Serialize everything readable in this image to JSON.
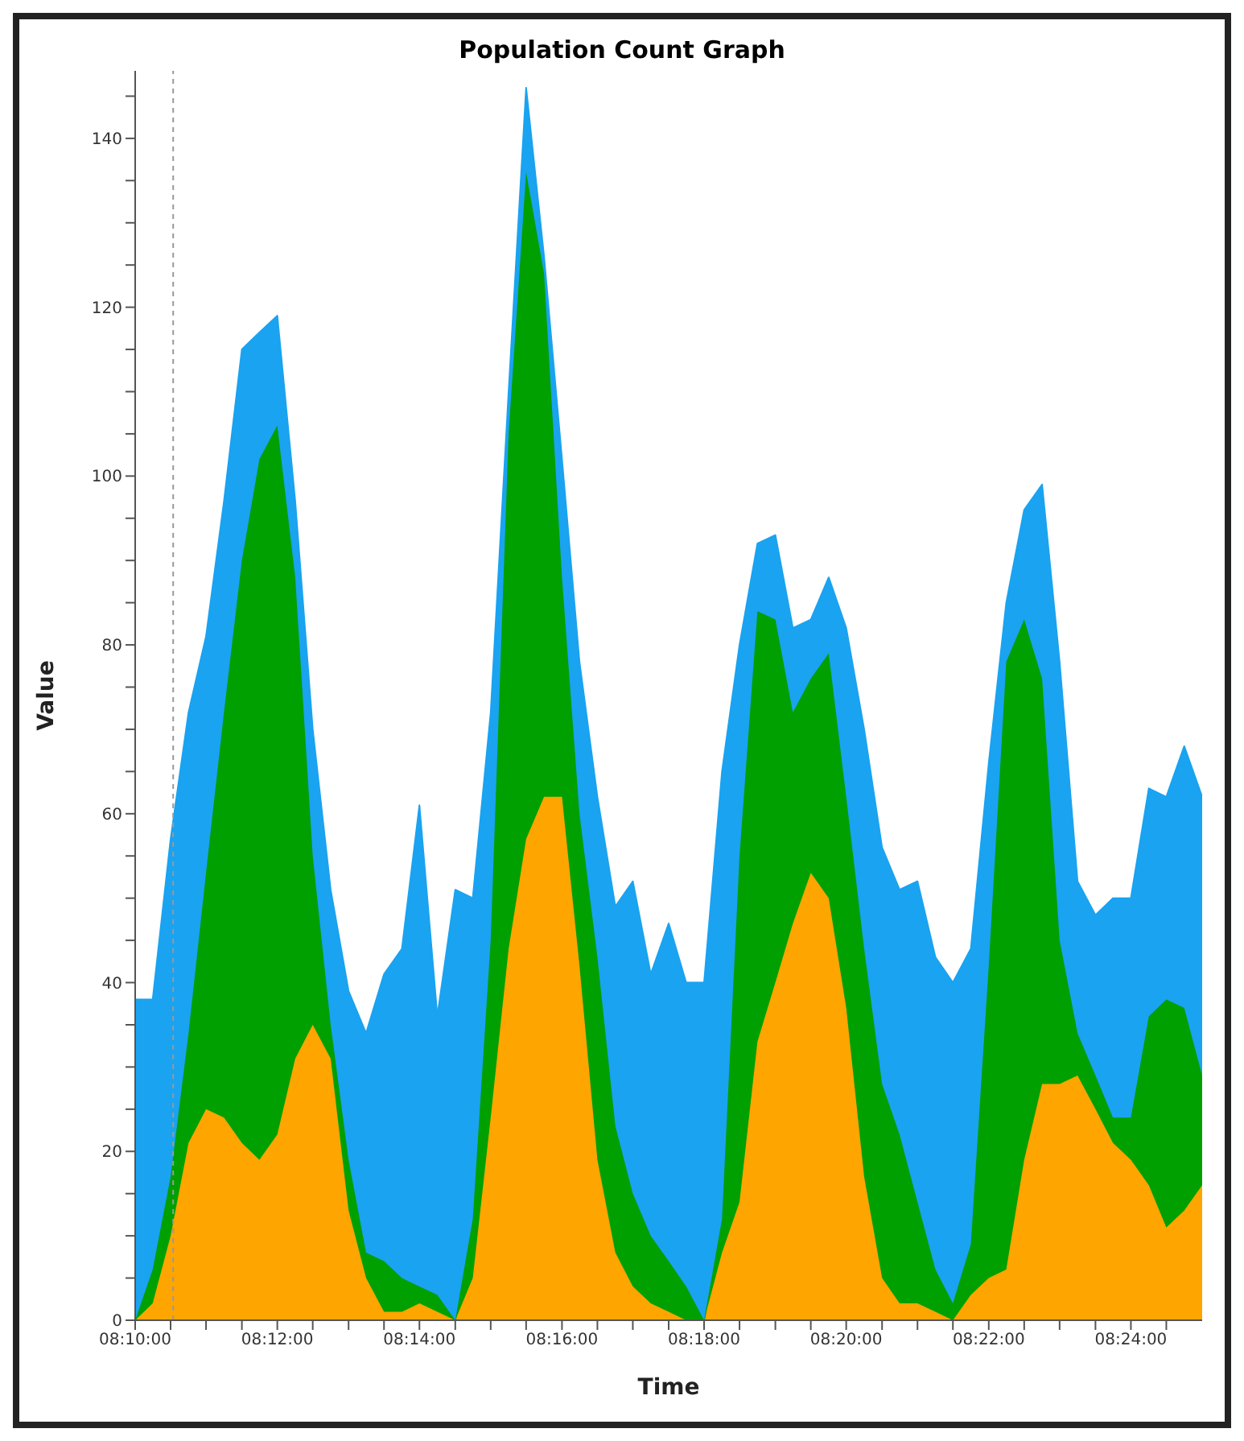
{
  "chart_data": {
    "type": "area",
    "title": "Population Count Graph",
    "xlabel": "Time",
    "ylabel": "Value",
    "stacked": true,
    "legend": false,
    "grid": false,
    "marker": "none",
    "x": [
      8.1667,
      8.1708,
      8.175,
      8.1792,
      8.1833,
      8.1875,
      8.1917,
      8.1958,
      8.2,
      8.2042,
      8.2083,
      8.2125,
      8.2167,
      8.2208,
      8.225,
      8.2292,
      8.2333,
      8.2375,
      8.2417,
      8.2458,
      8.25,
      8.2542,
      8.2583,
      8.2625,
      8.2667,
      8.2708,
      8.275,
      8.2792,
      8.2833,
      8.2875,
      8.2917,
      8.2958,
      8.3,
      8.3042,
      8.3083,
      8.3125,
      8.3167,
      8.3208,
      8.325,
      8.3292,
      8.3333,
      8.3375,
      8.3417,
      8.3458,
      8.35,
      8.3542,
      8.3583,
      8.3625,
      8.3667,
      8.3708,
      8.375,
      8.3792,
      8.3833,
      8.3875,
      8.3917,
      8.3958,
      8.4,
      8.4042,
      8.4083,
      8.4125,
      8.4167
    ],
    "series": [
      {
        "color": "#ffa500",
        "values": [
          0,
          2,
          10,
          21,
          25,
          24,
          21,
          19,
          22,
          31,
          35,
          31,
          13,
          5,
          1,
          1,
          2,
          1,
          0,
          5,
          24,
          44,
          57,
          62,
          62,
          42,
          19,
          8,
          4,
          2,
          1,
          0,
          0,
          8,
          14,
          33,
          40,
          47,
          53,
          50,
          37,
          17,
          5,
          2,
          2,
          1,
          0,
          3,
          5,
          6,
          19,
          28,
          28,
          29,
          25,
          21,
          19,
          16,
          11,
          13,
          16
        ]
      },
      {
        "color": "#00a000",
        "values": [
          0,
          4,
          7,
          13,
          28,
          48,
          69,
          83,
          84,
          57,
          20,
          4,
          6,
          3,
          6,
          4,
          2,
          2,
          0,
          7,
          21,
          61,
          79,
          62,
          26,
          18,
          24,
          15,
          11,
          8,
          6,
          4,
          0,
          4,
          41,
          51,
          43,
          25,
          23,
          29,
          25,
          27,
          23,
          20,
          12,
          5,
          2,
          6,
          37,
          72,
          64,
          48,
          17,
          5,
          4,
          3,
          5,
          20,
          27,
          24,
          13
        ]
      },
      {
        "color": "#1aa3f0",
        "values": [
          38,
          32,
          40,
          38,
          28,
          25,
          25,
          15,
          13,
          9,
          15,
          16,
          20,
          26,
          34,
          39,
          57,
          33,
          51,
          38,
          27,
          5,
          10,
          2,
          14,
          18,
          19,
          26,
          37,
          31,
          40,
          36,
          40,
          53,
          25,
          8,
          10,
          10,
          7,
          9,
          20,
          26,
          28,
          29,
          38,
          37,
          38,
          35,
          24,
          7,
          13,
          23,
          33,
          18,
          19,
          26,
          26,
          27,
          24,
          31,
          33
        ]
      }
    ],
    "xlim": [
      8.1667,
      8.4167
    ],
    "xticks": [
      {
        "value": 8.1667,
        "label": "08:10:00"
      },
      {
        "value": 8.175,
        "label": null
      },
      {
        "value": 8.1833,
        "label": null
      },
      {
        "value": 8.1917,
        "label": null
      },
      {
        "value": 8.2,
        "label": "08:12:00"
      },
      {
        "value": 8.2083,
        "label": null
      },
      {
        "value": 8.2167,
        "label": null
      },
      {
        "value": 8.225,
        "label": null
      },
      {
        "value": 8.2333,
        "label": "08:14:00"
      },
      {
        "value": 8.2417,
        "label": null
      },
      {
        "value": 8.25,
        "label": null
      },
      {
        "value": 8.2583,
        "label": null
      },
      {
        "value": 8.2667,
        "label": "08:16:00"
      },
      {
        "value": 8.275,
        "label": null
      },
      {
        "value": 8.2833,
        "label": null
      },
      {
        "value": 8.2917,
        "label": null
      },
      {
        "value": 8.3,
        "label": "08:18:00"
      },
      {
        "value": 8.3083,
        "label": null
      },
      {
        "value": 8.3167,
        "label": null
      },
      {
        "value": 8.325,
        "label": null
      },
      {
        "value": 8.3333,
        "label": "08:20:00"
      },
      {
        "value": 8.3417,
        "label": null
      },
      {
        "value": 8.35,
        "label": null
      },
      {
        "value": 8.3583,
        "label": null
      },
      {
        "value": 8.3667,
        "label": "08:22:00"
      },
      {
        "value": 8.375,
        "label": null
      },
      {
        "value": 8.3833,
        "label": null
      },
      {
        "value": 8.3917,
        "label": null
      },
      {
        "value": 8.4,
        "label": "08:24:00"
      },
      {
        "value": 8.4083,
        "label": null
      }
    ],
    "ylim": [
      0,
      148
    ],
    "yticks": [
      0,
      {
        "value": 5,
        "label": null
      },
      {
        "value": 10,
        "label": null
      },
      {
        "value": 15,
        "label": null
      },
      20,
      {
        "value": 25,
        "label": null
      },
      {
        "value": 30,
        "label": null
      },
      {
        "value": 35,
        "label": null
      },
      40,
      {
        "value": 45,
        "label": null
      },
      {
        "value": 50,
        "label": null
      },
      {
        "value": 55,
        "label": null
      },
      60,
      {
        "value": 65,
        "label": null
      },
      {
        "value": 70,
        "label": null
      },
      {
        "value": 75,
        "label": null
      },
      80,
      {
        "value": 85,
        "label": null
      },
      {
        "value": 90,
        "label": null
      },
      {
        "value": 95,
        "label": null
      },
      100,
      {
        "value": 105,
        "label": null
      },
      {
        "value": 110,
        "label": null
      },
      {
        "value": 115,
        "label": null
      },
      120,
      {
        "value": 125,
        "label": null
      },
      {
        "value": 130,
        "label": null
      },
      {
        "value": 135,
        "label": null
      },
      140,
      {
        "value": 145,
        "label": null
      }
    ],
    "ref_lines": [
      {
        "axis": "x",
        "value": 8.1756,
        "label": null,
        "color": "#999999",
        "line_style": "dashed"
      }
    ]
  }
}
